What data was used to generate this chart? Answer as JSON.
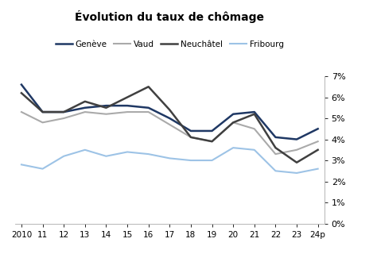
{
  "title": "Évolution du taux de chômage",
  "x_labels": [
    "2010",
    "11",
    "12",
    "13",
    "14",
    "15",
    "16",
    "17",
    "18",
    "19",
    "20",
    "21",
    "22",
    "23",
    "24p"
  ],
  "x_values": [
    2010,
    2011,
    2012,
    2013,
    2014,
    2015,
    2016,
    2017,
    2018,
    2019,
    2020,
    2021,
    2022,
    2023,
    2024
  ],
  "series": {
    "Genève": {
      "values": [
        6.6,
        5.3,
        5.3,
        5.5,
        5.6,
        5.6,
        5.5,
        5.0,
        4.4,
        4.4,
        5.2,
        5.3,
        4.1,
        4.0,
        4.5
      ],
      "color": "#1F3864",
      "linewidth": 1.8
    },
    "Vaud": {
      "values": [
        5.3,
        4.8,
        5.0,
        5.3,
        5.2,
        5.3,
        5.3,
        4.7,
        4.1,
        3.9,
        4.8,
        4.5,
        3.3,
        3.5,
        3.9
      ],
      "color": "#AAAAAA",
      "linewidth": 1.5
    },
    "Neuchâtel": {
      "values": [
        6.2,
        5.3,
        5.3,
        5.8,
        5.5,
        6.0,
        6.5,
        5.4,
        4.1,
        3.9,
        4.8,
        5.2,
        3.6,
        2.9,
        3.5
      ],
      "color": "#404040",
      "linewidth": 1.8
    },
    "Fribourg": {
      "values": [
        2.8,
        2.6,
        3.2,
        3.5,
        3.2,
        3.4,
        3.3,
        3.1,
        3.0,
        3.0,
        3.6,
        3.5,
        2.5,
        2.4,
        2.6
      ],
      "color": "#9DC3E6",
      "linewidth": 1.5
    }
  },
  "ylim": [
    0,
    7
  ],
  "yticks": [
    0,
    1,
    2,
    3,
    4,
    5,
    6,
    7
  ],
  "background_color": "#FFFFFF",
  "legend_order": [
    "Genève",
    "Vaud",
    "Neuchâtel",
    "Fribourg"
  ]
}
